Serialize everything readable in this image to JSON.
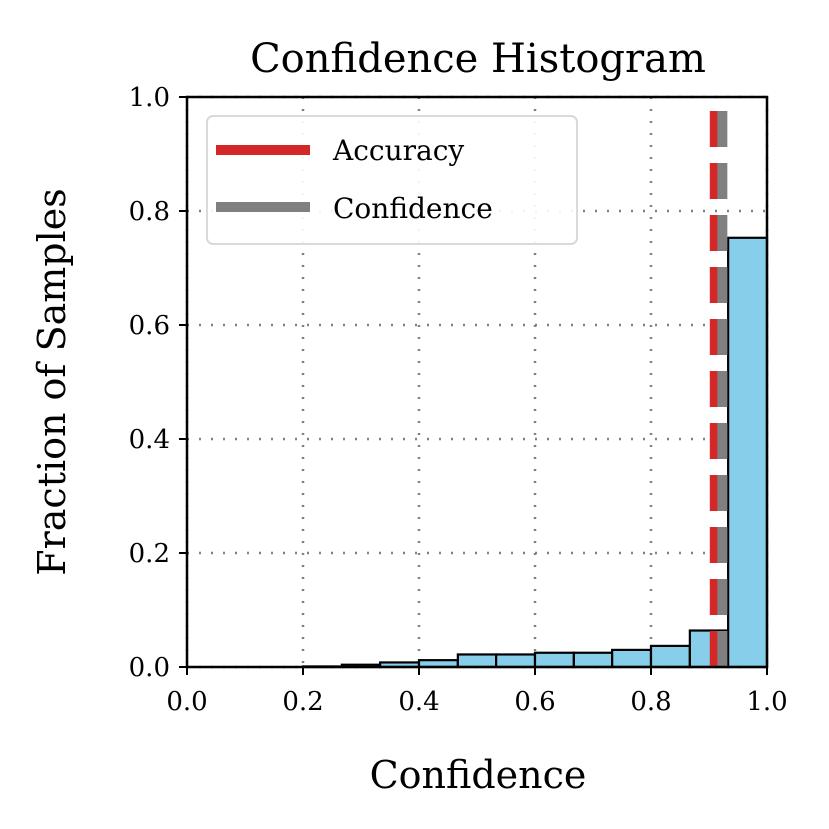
{
  "chart_data": {
    "type": "bar",
    "title": "Confidence Histogram",
    "xlabel": "Confidence",
    "ylabel": "Fraction of Samples",
    "xlim": [
      0.0,
      1.0
    ],
    "ylim": [
      0.0,
      1.0
    ],
    "xticks": [
      "0.0",
      "0.2",
      "0.4",
      "0.6",
      "0.8",
      "1.0"
    ],
    "yticks": [
      "0.0",
      "0.2",
      "0.4",
      "0.6",
      "0.8",
      "1.0"
    ],
    "grid": true,
    "legend": {
      "position": "upper-left",
      "entries": [
        {
          "label": "Accuracy",
          "color": "#d62728"
        },
        {
          "label": "Confidence",
          "color": "#808080"
        }
      ]
    },
    "bins": [
      {
        "start": 0.0,
        "end": 0.067,
        "value": 0.0
      },
      {
        "start": 0.067,
        "end": 0.133,
        "value": 0.0
      },
      {
        "start": 0.133,
        "end": 0.2,
        "value": 0.0
      },
      {
        "start": 0.2,
        "end": 0.267,
        "value": 0.001
      },
      {
        "start": 0.267,
        "end": 0.333,
        "value": 0.004
      },
      {
        "start": 0.333,
        "end": 0.4,
        "value": 0.008
      },
      {
        "start": 0.4,
        "end": 0.467,
        "value": 0.012
      },
      {
        "start": 0.467,
        "end": 0.533,
        "value": 0.022
      },
      {
        "start": 0.533,
        "end": 0.6,
        "value": 0.022
      },
      {
        "start": 0.6,
        "end": 0.667,
        "value": 0.025
      },
      {
        "start": 0.667,
        "end": 0.733,
        "value": 0.025
      },
      {
        "start": 0.733,
        "end": 0.8,
        "value": 0.03
      },
      {
        "start": 0.8,
        "end": 0.867,
        "value": 0.037
      },
      {
        "start": 0.867,
        "end": 0.933,
        "value": 0.064
      },
      {
        "start": 0.933,
        "end": 1.0,
        "value": 0.753
      }
    ],
    "bar_color": "#87ceeb",
    "accuracy_value": 0.91,
    "confidence_value": 0.923
  }
}
